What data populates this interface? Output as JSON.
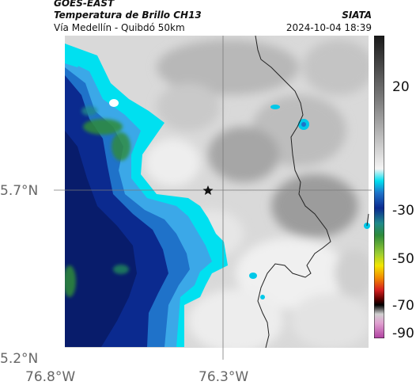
{
  "header": {
    "satellite": "GOES-EAST",
    "product": "Temperatura de Brillo CH13",
    "route": "Vía Medellín - Quibdó 50km",
    "agency": "SIATA",
    "timestamp": "2024-10-04 18:39"
  },
  "map": {
    "lat_ticks": [
      "5.7°N",
      "5.2°N"
    ],
    "lon_ticks": [
      "76.8°W",
      "76.3°W"
    ],
    "marker": "star-icon"
  },
  "colorbar": {
    "labels": [
      "20",
      "-30",
      "-50",
      "-70",
      "-90"
    ],
    "colors": {
      "warm_top": "#1a1a1a",
      "cold_blue": "#0b2a8f",
      "cyan": "#00e0f0",
      "green": "#2e8b3a",
      "yellow": "#f2e600",
      "red": "#d62020",
      "magenta": "#b040a0"
    }
  }
}
